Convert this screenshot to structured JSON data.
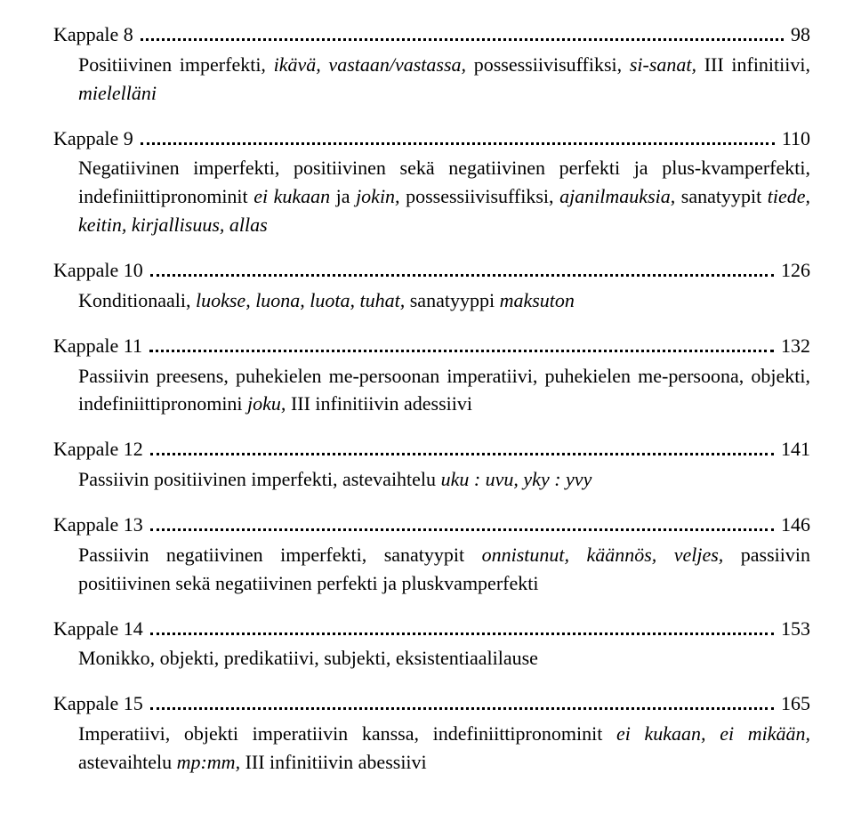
{
  "chapters": [
    {
      "label": "Kappale 8",
      "page": "98",
      "desc_parts": [
        {
          "t": "Positiivinen imperfekti, "
        },
        {
          "t": "ikävä, vastaan/vastassa,",
          "i": true
        },
        {
          "t": " possessiivisuffiksi, "
        },
        {
          "t": "si-sanat,",
          "i": true
        },
        {
          "t": " III infinitiivi, "
        },
        {
          "t": "mielelläni",
          "i": true
        }
      ]
    },
    {
      "label": "Kappale 9",
      "page": "110",
      "desc_parts": [
        {
          "t": "Negatiivinen imperfekti, positiivinen sekä negatiivinen perfekti ja plus-kvamperfekti, indefiniittipronominit "
        },
        {
          "t": "ei kukaan",
          "i": true
        },
        {
          "t": " ja "
        },
        {
          "t": "jokin,",
          "i": true
        },
        {
          "t": " possessiivisuffiksi, "
        },
        {
          "t": "ajanilmauksia,",
          "i": true
        },
        {
          "t": " sanatyypit "
        },
        {
          "t": "tiede, keitin, kirjallisuus, allas",
          "i": true
        }
      ]
    },
    {
      "label": "Kappale 10",
      "page": "126",
      "desc_parts": [
        {
          "t": "Konditionaali, "
        },
        {
          "t": "luokse, luona, luota, tuhat,",
          "i": true
        },
        {
          "t": " sanatyyppi "
        },
        {
          "t": "maksuton",
          "i": true
        }
      ]
    },
    {
      "label": "Kappale 11",
      "page": "132",
      "desc_parts": [
        {
          "t": "Passiivin preesens, puhekielen me-persoonan imperatiivi, puhekielen me-persoona, objekti, indefiniittipronomini "
        },
        {
          "t": "joku,",
          "i": true
        },
        {
          "t": " III infinitiivin adessiivi"
        }
      ]
    },
    {
      "label": "Kappale 12",
      "page": "141",
      "desc_parts": [
        {
          "t": "Passiivin positiivinen imperfekti, astevaihtelu "
        },
        {
          "t": "uku : uvu, yky : yvy",
          "i": true
        }
      ]
    },
    {
      "label": "Kappale 13",
      "page": "146",
      "desc_parts": [
        {
          "t": "Passiivin negatiivinen imperfekti, sanatyypit "
        },
        {
          "t": "onnistunut, käännös, veljes,",
          "i": true
        },
        {
          "t": " passiivin positiivinen sekä negatiivinen perfekti ja pluskvamperfekti"
        }
      ]
    },
    {
      "label": "Kappale 14",
      "page": "153",
      "desc_parts": [
        {
          "t": "Monikko, objekti, predikatiivi, subjekti, eksistentiaalilause"
        }
      ]
    },
    {
      "label": "Kappale 15",
      "page": "165",
      "desc_parts": [
        {
          "t": "Imperatiivi, objekti imperatiivin kanssa, indefiniittipronominit "
        },
        {
          "t": "ei kukaan, ei mikään,",
          "i": true
        },
        {
          "t": " astevaihtelu "
        },
        {
          "t": "mp:mm,",
          "i": true
        },
        {
          "t": " III infinitiivin abessiivi"
        }
      ]
    }
  ]
}
